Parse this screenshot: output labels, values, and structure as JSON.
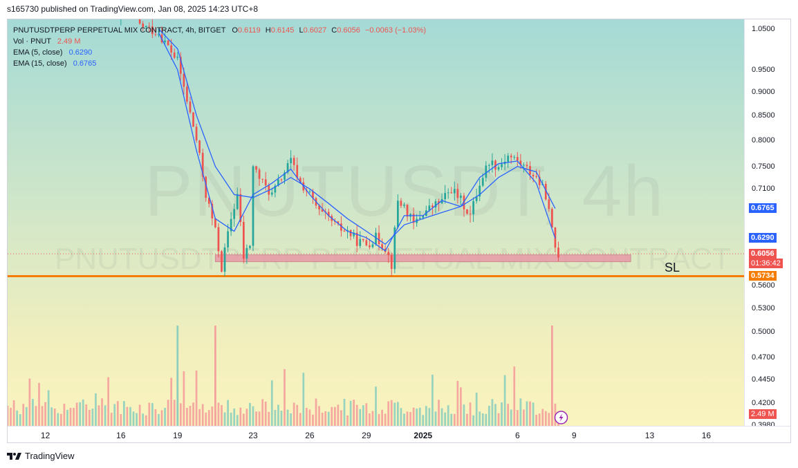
{
  "header": {
    "published": "s165730 published on TradingView.com, Jan 08, 2025 14:23 UTC+8"
  },
  "legend": {
    "symbol": "PNUTUSDTPERP PERPETUAL MIX CONTRACT, 4h, BITGET",
    "o_label": "O",
    "o_value": "0.6119",
    "h_label": "H",
    "h_value": "0.6145",
    "l_label": "L",
    "l_value": "0.6027",
    "c_label": "C",
    "c_value": "0.6056",
    "change": "−0.0063 (−1.03%)",
    "vol_label": "Vol · PNUT",
    "vol_value": "2.49 M",
    "ema5_label": "EMA (5, close)",
    "ema5_value": "0.6290",
    "ema15_label": "EMA (15, close)",
    "ema15_value": "0.6765"
  },
  "watermark": {
    "big": "PNUTUSDT, 4h",
    "small": "PNUTUSDTPERP PERPETUAL MIX CONTRACT"
  },
  "annotation": {
    "sl": "SL"
  },
  "price_tags": {
    "ema15": "0.6765",
    "ema5": "0.6290",
    "last": "0.6056",
    "countdown": "01:36:42",
    "sl": "0.5734",
    "volume": "2.49 M"
  },
  "footer": {
    "brand": "TradingView"
  },
  "colors": {
    "up": "#26a69a",
    "down": "#ef5350",
    "ema5": "#2962ff",
    "ema15": "#2962ff",
    "sl_line": "#f57c00",
    "zone": "#e89aa6"
  },
  "chart_data": {
    "type": "candlestick",
    "interval": "4h",
    "y_ticks": [
      1.05,
      0.95,
      0.9,
      0.85,
      0.8,
      0.75,
      0.71,
      0.56,
      0.53,
      0.5,
      0.47,
      0.445,
      0.42,
      0.398
    ],
    "y_tick_labels": [
      "1.0500",
      "0.9500",
      "0.9000",
      "0.8500",
      "0.8000",
      "0.7500",
      "0.7100",
      "0.5600",
      "0.5300",
      "0.5000",
      "0.4700",
      "0.4450",
      "0.4200",
      "0.3980"
    ],
    "y_scale": "log",
    "ylim": [
      0.3975,
      1.075
    ],
    "x_tick_labels": [
      "12",
      "16",
      "19",
      "23",
      "26",
      "29",
      "2025",
      "6",
      "9",
      "13",
      "16"
    ],
    "x_tick_dates": [
      "2024-12-12",
      "2024-12-16",
      "2024-12-19",
      "2024-12-23",
      "2024-12-26",
      "2024-12-29",
      "2025-01-01",
      "2025-01-06",
      "2025-01-09",
      "2025-01-13",
      "2025-01-16"
    ],
    "xlim": [
      "2024-12-10",
      "2025-01-18"
    ],
    "close_path": [
      [
        "2024-12-17",
        1.06
      ],
      [
        "2024-12-18",
        1.04
      ],
      [
        "2024-12-19",
        0.97
      ],
      [
        "2024-12-19 12:00",
        0.88
      ],
      [
        "2024-12-20",
        0.8
      ],
      [
        "2024-12-20 12:00",
        0.7
      ],
      [
        "2024-12-21",
        0.64
      ],
      [
        "2024-12-21 08:00",
        0.585
      ],
      [
        "2024-12-21 20:00",
        0.66
      ],
      [
        "2024-12-22 04:00",
        0.7
      ],
      [
        "2024-12-22 12:00",
        0.6
      ],
      [
        "2024-12-22 20:00",
        0.62
      ],
      [
        "2024-12-23",
        0.75
      ],
      [
        "2024-12-23 12:00",
        0.72
      ],
      [
        "2024-12-24",
        0.7
      ],
      [
        "2024-12-24 12:00",
        0.73
      ],
      [
        "2024-12-25",
        0.76
      ],
      [
        "2024-12-25 12:00",
        0.72
      ],
      [
        "2024-12-26",
        0.7
      ],
      [
        "2024-12-26 12:00",
        0.67
      ],
      [
        "2024-12-27",
        0.66
      ],
      [
        "2024-12-27 12:00",
        0.645
      ],
      [
        "2024-12-28",
        0.64
      ],
      [
        "2024-12-28 12:00",
        0.625
      ],
      [
        "2024-12-29",
        0.62
      ],
      [
        "2024-12-29 12:00",
        0.63
      ],
      [
        "2024-12-30",
        0.615
      ],
      [
        "2024-12-30 08:00",
        0.59
      ],
      [
        "2024-12-30 16:00",
        0.69
      ],
      [
        "2024-12-31",
        0.68
      ],
      [
        "2024-12-31 12:00",
        0.65
      ],
      [
        "2025-01-01",
        0.67
      ],
      [
        "2025-01-01 12:00",
        0.68
      ],
      [
        "2025-01-02",
        0.69
      ],
      [
        "2025-01-02 12:00",
        0.71
      ],
      [
        "2025-01-03",
        0.69
      ],
      [
        "2025-01-03 12:00",
        0.665
      ],
      [
        "2025-01-04",
        0.72
      ],
      [
        "2025-01-04 12:00",
        0.76
      ],
      [
        "2025-01-05",
        0.75
      ],
      [
        "2025-01-05 12:00",
        0.77
      ],
      [
        "2025-01-06",
        0.76
      ],
      [
        "2025-01-06 12:00",
        0.745
      ],
      [
        "2025-01-07",
        0.73
      ],
      [
        "2025-01-07 12:00",
        0.7
      ],
      [
        "2025-01-07 20:00",
        0.64
      ],
      [
        "2025-01-08",
        0.615
      ],
      [
        "2025-01-08 04:00",
        0.6056
      ]
    ],
    "ema15_path": [
      [
        "2024-12-18",
        1.05
      ],
      [
        "2024-12-19",
        1.0
      ],
      [
        "2024-12-20",
        0.85
      ],
      [
        "2024-12-21",
        0.75
      ],
      [
        "2024-12-22",
        0.7
      ],
      [
        "2024-12-23",
        0.695
      ],
      [
        "2024-12-24",
        0.71
      ],
      [
        "2024-12-25",
        0.73
      ],
      [
        "2024-12-26",
        0.71
      ],
      [
        "2024-12-27",
        0.685
      ],
      [
        "2024-12-28",
        0.66
      ],
      [
        "2024-12-29",
        0.64
      ],
      [
        "2024-12-30",
        0.62
      ],
      [
        "2024-12-31",
        0.65
      ],
      [
        "2025-01-01",
        0.66
      ],
      [
        "2025-01-02",
        0.67
      ],
      [
        "2025-01-03",
        0.68
      ],
      [
        "2025-01-04",
        0.7
      ],
      [
        "2025-01-05",
        0.73
      ],
      [
        "2025-01-06",
        0.75
      ],
      [
        "2025-01-07",
        0.74
      ],
      [
        "2025-01-08",
        0.6765
      ]
    ],
    "ema5_path": [
      [
        "2024-12-18",
        1.04
      ],
      [
        "2024-12-19",
        0.95
      ],
      [
        "2024-12-20",
        0.78
      ],
      [
        "2024-12-21",
        0.66
      ],
      [
        "2024-12-22",
        0.64
      ],
      [
        "2024-12-23",
        0.7
      ],
      [
        "2024-12-24",
        0.72
      ],
      [
        "2024-12-25",
        0.745
      ],
      [
        "2024-12-26",
        0.7
      ],
      [
        "2024-12-27",
        0.665
      ],
      [
        "2024-12-28",
        0.64
      ],
      [
        "2024-12-29",
        0.63
      ],
      [
        "2024-12-30",
        0.61
      ],
      [
        "2024-12-31",
        0.665
      ],
      [
        "2025-01-01",
        0.665
      ],
      [
        "2025-01-02",
        0.69
      ],
      [
        "2025-01-03",
        0.68
      ],
      [
        "2025-01-04",
        0.73
      ],
      [
        "2025-01-05",
        0.755
      ],
      [
        "2025-01-06",
        0.76
      ],
      [
        "2025-01-07",
        0.72
      ],
      [
        "2025-01-08",
        0.629
      ]
    ],
    "support_zone": {
      "from": "2024-12-21",
      "to": "2025-01-12",
      "low": 0.594,
      "high": 0.604
    },
    "stop_loss": 0.5734,
    "volume_highlights": [
      [
        "2024-12-19",
        "up"
      ],
      [
        "2024-12-21",
        "down"
      ],
      [
        "2025-01-07 20:00",
        "down"
      ]
    ]
  }
}
